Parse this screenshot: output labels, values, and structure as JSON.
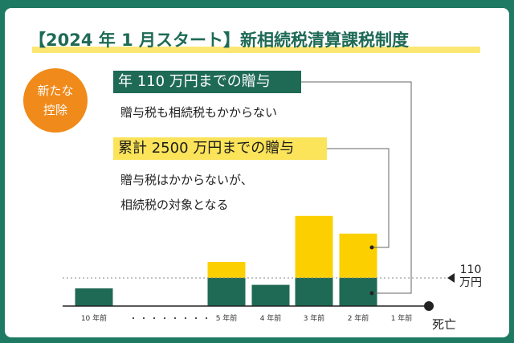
{
  "title": "【2024 年 1 月スタート】新相続税清算課税制度",
  "badge": {
    "line1": "新たな",
    "line2": "控除"
  },
  "annual_label": "年 110 万円までの贈与",
  "annual_desc": "贈与税も相続税もかからない",
  "cumulative_label": "累計 2500 万円までの贈与",
  "cumulative_desc_line1": "贈与税はかからないが、",
  "cumulative_desc_line2": "相続税の対象となる",
  "threshold_label_value": "110",
  "threshold_label_unit": "万円",
  "death_label": "死亡",
  "dots": "・・・・・・・・",
  "colors": {
    "green": "#1e6a55",
    "yellow": "#fcd000",
    "orange": "#f08a1a",
    "frame": "#1e7a62"
  },
  "chart_data": {
    "type": "bar",
    "categories": [
      "10 年前",
      "5 年前",
      "4 年前",
      "3 年前",
      "2 年前",
      "1 年前"
    ],
    "series": [
      {
        "values": [
          1.0,
          1.6,
          1.2,
          1.6,
          1.6,
          0
        ]
      },
      {
        "values": [
          0,
          0.9,
          0,
          3.5,
          2.5,
          0
        ]
      }
    ],
    "threshold": 1.6
  }
}
